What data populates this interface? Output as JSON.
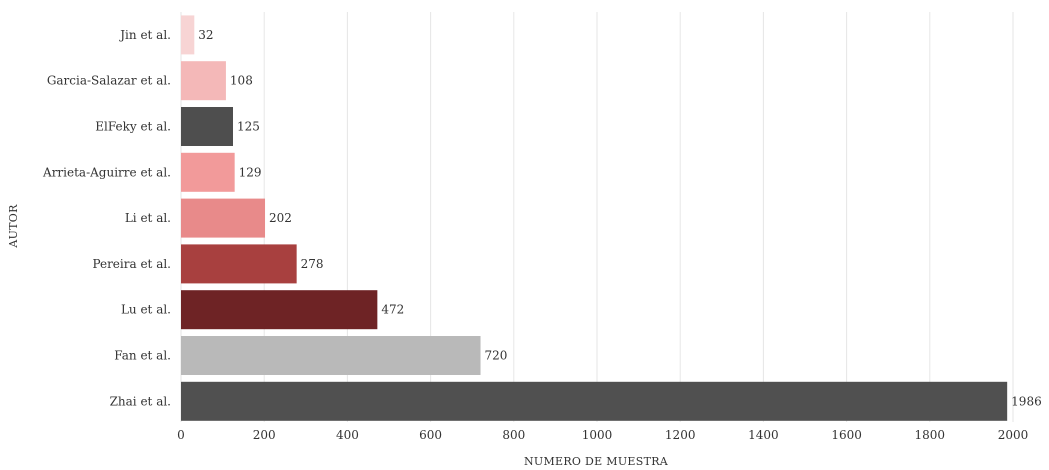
{
  "chart_data": {
    "type": "bar",
    "orientation": "horizontal",
    "title": "",
    "xlabel": "NUMERO DE MUESTRA",
    "ylabel": "AUTOR",
    "xlim": [
      0,
      2000
    ],
    "xticks": [
      0,
      200,
      400,
      600,
      800,
      1000,
      1200,
      1400,
      1600,
      1800,
      2000
    ],
    "grid": "vertical",
    "legend": "none",
    "categories": [
      "Jin et al.",
      "Garcia-Salazar et al.",
      "ElFeky et al.",
      "Arrieta-Aguirre et al.",
      "Li et al.",
      "Pereira et al.",
      "Lu et al.",
      "Fan et al.",
      "Zhai et al."
    ],
    "values": [
      32,
      108,
      125,
      129,
      202,
      278,
      472,
      720,
      1986
    ],
    "colors": [
      "#f7d4d4",
      "#f4b8b8",
      "#4e4e4e",
      "#f29a9a",
      "#e88a8a",
      "#a8403f",
      "#6e2325",
      "#b9b9b9",
      "#505050"
    ]
  }
}
